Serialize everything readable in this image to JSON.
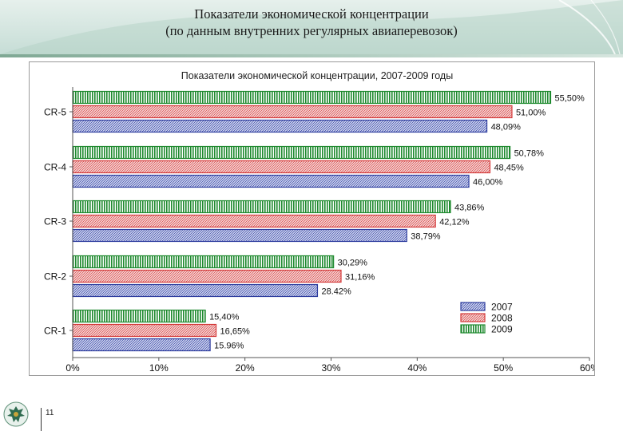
{
  "slide": {
    "title_line1": "Показатели экономической концентрации",
    "title_line2": "(по данным внутренних регулярных авиаперевозок)",
    "page_number": "11",
    "emblem": "eagle-emblem-icon"
  },
  "colors": {
    "2007": "#2d3c9e",
    "2008": "#d43a3a",
    "2009": "#1e8a2e",
    "header_band": "#c6ddd6"
  },
  "chart_data": {
    "type": "bar",
    "orientation": "horizontal",
    "title": "Показатели экономической концентрации, 2007-2009 годы",
    "categories": [
      "CR-5",
      "CR-4",
      "CR-3",
      "CR-2",
      "CR-1"
    ],
    "series": [
      {
        "name": "2007",
        "values": [
          48.09,
          46.0,
          38.79,
          28.42,
          15.96
        ],
        "labels": [
          "48,09%",
          "46,00%",
          "38,79%",
          "28.42%",
          "15.96%"
        ]
      },
      {
        "name": "2008",
        "values": [
          51.0,
          48.45,
          42.12,
          31.16,
          16.65
        ],
        "labels": [
          "51,00%",
          "48,45%",
          "42,12%",
          "31,16%",
          "16,65%"
        ]
      },
      {
        "name": "2009",
        "values": [
          55.5,
          50.78,
          43.86,
          30.29,
          15.4
        ],
        "labels": [
          "55,50%",
          "50,78%",
          "43,86%",
          "30,29%",
          "15,40%"
        ]
      }
    ],
    "x_ticks": [
      "0%",
      "10%",
      "20%",
      "30%",
      "40%",
      "50%",
      "60%"
    ],
    "xlim": [
      0,
      60
    ],
    "xlabel": "",
    "ylabel": "",
    "grid": false,
    "legend": {
      "position": "bottom-right",
      "entries": [
        "2007",
        "2008",
        "2009"
      ]
    }
  }
}
